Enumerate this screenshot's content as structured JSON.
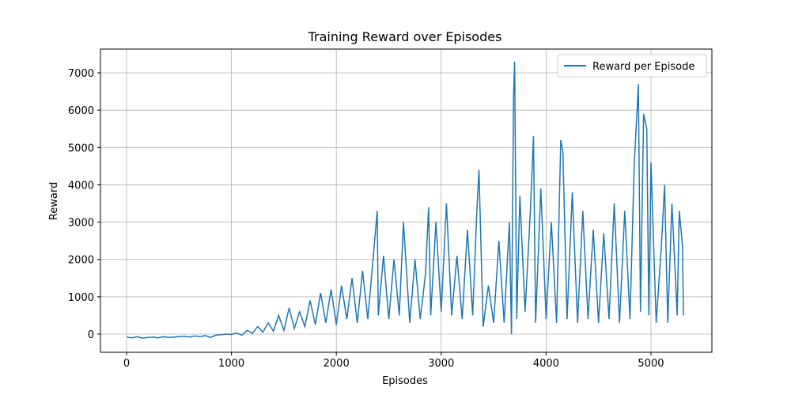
{
  "chart_data": {
    "type": "line",
    "title": "Training Reward over Episodes",
    "xlabel": "Episodes",
    "ylabel": "Reward",
    "x": [
      0,
      50,
      100,
      150,
      200,
      250,
      300,
      350,
      400,
      450,
      500,
      550,
      600,
      650,
      700,
      750,
      800,
      850,
      900,
      950,
      1000,
      1050,
      1100,
      1150,
      1200,
      1250,
      1300,
      1350,
      1400,
      1450,
      1500,
      1550,
      1600,
      1650,
      1700,
      1750,
      1800,
      1850,
      1900,
      1950,
      2000,
      2050,
      2100,
      2150,
      2200,
      2250,
      2300,
      2350,
      2390,
      2400,
      2450,
      2500,
      2550,
      2600,
      2640,
      2700,
      2750,
      2800,
      2850,
      2880,
      2900,
      2950,
      3000,
      3050,
      3100,
      3150,
      3200,
      3250,
      3300,
      3340,
      3360,
      3400,
      3450,
      3500,
      3550,
      3600,
      3650,
      3670,
      3690,
      3700,
      3720,
      3750,
      3800,
      3850,
      3880,
      3900,
      3950,
      4000,
      4050,
      4100,
      4140,
      4160,
      4200,
      4250,
      4300,
      4350,
      4400,
      4450,
      4500,
      4550,
      4600,
      4650,
      4700,
      4750,
      4800,
      4840,
      4880,
      4900,
      4930,
      4960,
      4980,
      5000,
      5050,
      5100,
      5130,
      5160,
      5200,
      5250,
      5270,
      5300,
      5310
    ],
    "series": [
      {
        "name": "Reward per Episode",
        "color": "#1f77b4",
        "values": [
          -80,
          -100,
          -70,
          -110,
          -90,
          -80,
          -100,
          -70,
          -90,
          -80,
          -70,
          -60,
          -80,
          -50,
          -70,
          -40,
          -90,
          -30,
          -20,
          0,
          -10,
          30,
          -30,
          100,
          20,
          200,
          50,
          300,
          80,
          500,
          100,
          700,
          150,
          600,
          200,
          900,
          250,
          1100,
          300,
          1200,
          250,
          1300,
          400,
          1500,
          300,
          1700,
          400,
          2000,
          3300,
          500,
          2100,
          400,
          2000,
          500,
          3000,
          300,
          2000,
          400,
          1600,
          3400,
          500,
          3000,
          600,
          3500,
          500,
          2100,
          400,
          2800,
          500,
          3300,
          4400,
          200,
          1300,
          300,
          2500,
          300,
          3000,
          0,
          6400,
          7300,
          400,
          3700,
          600,
          3300,
          5300,
          300,
          3900,
          400,
          3000,
          300,
          5200,
          4900,
          400,
          3800,
          300,
          3300,
          400,
          2800,
          300,
          2700,
          400,
          3500,
          300,
          3300,
          400,
          4500,
          6700,
          600,
          5900,
          5500,
          500,
          4600,
          300,
          2400,
          4000,
          300,
          3500,
          500,
          3300,
          2400,
          500
        ]
      }
    ],
    "xlim": [
      -249,
      5581
    ],
    "ylim": [
      -488,
      7637
    ],
    "xticks": [
      0,
      1000,
      2000,
      3000,
      4000,
      5000
    ],
    "yticks": [
      0,
      1000,
      2000,
      3000,
      4000,
      5000,
      6000,
      7000
    ],
    "grid": true,
    "legend": "upper right"
  }
}
